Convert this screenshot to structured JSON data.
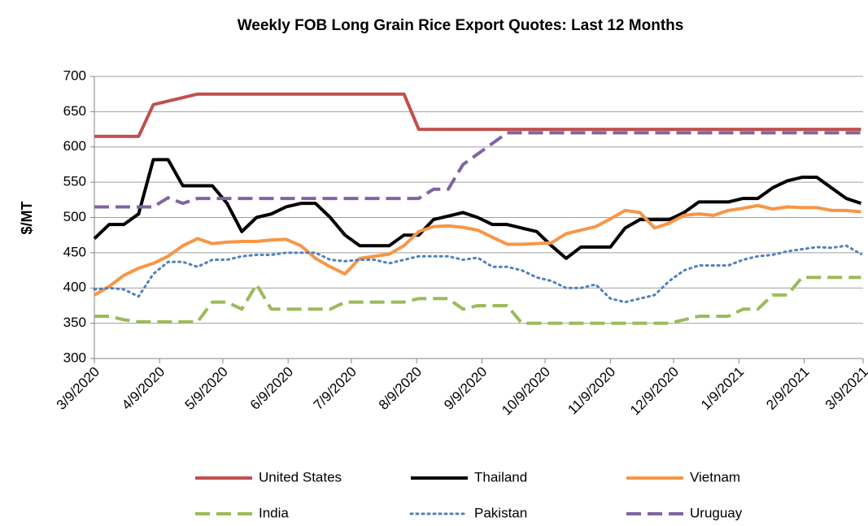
{
  "chart_data": {
    "type": "line",
    "title": "Weekly FOB Long Grain Rice Export Quotes:  Last 12 Months",
    "y_label": "$/MT",
    "x": [
      "3/9/2020",
      "3/16/2020",
      "3/23/2020",
      "3/30/2020",
      "4/6/2020",
      "4/13/2020",
      "4/20/2020",
      "4/27/2020",
      "5/4/2020",
      "5/11/2020",
      "5/18/2020",
      "5/25/2020",
      "6/1/2020",
      "6/8/2020",
      "6/15/2020",
      "6/22/2020",
      "6/29/2020",
      "7/6/2020",
      "7/13/2020",
      "7/20/2020",
      "7/27/2020",
      "8/3/2020",
      "8/10/2020",
      "8/17/2020",
      "8/24/2020",
      "8/31/2020",
      "9/7/2020",
      "9/14/2020",
      "9/21/2020",
      "9/28/2020",
      "10/5/2020",
      "10/12/2020",
      "10/19/2020",
      "10/26/2020",
      "11/2/2020",
      "11/9/2020",
      "11/16/2020",
      "11/23/2020",
      "11/30/2020",
      "12/7/2020",
      "12/14/2020",
      "12/21/2020",
      "12/28/2020",
      "1/4/2021",
      "1/11/2021",
      "1/18/2021",
      "1/25/2021",
      "2/1/2021",
      "2/8/2021",
      "2/15/2021",
      "2/22/2021",
      "3/1/2021",
      "3/8/2021"
    ],
    "xlim": [
      "3/9/2020",
      "3/9/2021"
    ],
    "xticks": [
      "3/9/2020",
      "4/9/2020",
      "5/9/2020",
      "6/9/2020",
      "7/9/2020",
      "8/9/2020",
      "9/9/2020",
      "10/9/2020",
      "11/9/2020",
      "12/9/2020",
      "1/9/2021",
      "2/9/2021",
      "3/9/2021"
    ],
    "ylim": [
      300,
      700
    ],
    "yticks": [
      300,
      350,
      400,
      450,
      500,
      550,
      600,
      650,
      700
    ],
    "grid": true,
    "legend": "bottom",
    "series": [
      {
        "name": "United States",
        "color": "#c0504d",
        "dash": "solid",
        "values": [
          615,
          615,
          615,
          615,
          660,
          665,
          670,
          675,
          675,
          675,
          675,
          675,
          675,
          675,
          675,
          675,
          675,
          675,
          675,
          675,
          675,
          675,
          625,
          625,
          625,
          625,
          625,
          625,
          625,
          625,
          625,
          625,
          625,
          625,
          625,
          625,
          625,
          625,
          625,
          625,
          625,
          625,
          625,
          625,
          625,
          625,
          625,
          625,
          625,
          625,
          625,
          625,
          625
        ]
      },
      {
        "name": "Thailand",
        "color": "#000000",
        "dash": "solid",
        "values": [
          470,
          490,
          490,
          505,
          582,
          582,
          545,
          545,
          545,
          520,
          480,
          500,
          505,
          515,
          520,
          520,
          500,
          475,
          460,
          460,
          460,
          475,
          475,
          497,
          502,
          507,
          500,
          490,
          490,
          485,
          480,
          460,
          442,
          458,
          458,
          458,
          485,
          497,
          497,
          497,
          507,
          522,
          522,
          522,
          527,
          527,
          542,
          552,
          557,
          557,
          542,
          527,
          520
        ]
      },
      {
        "name": "Vietnam",
        "color": "#f79646",
        "dash": "solid",
        "values": [
          390,
          402,
          418,
          428,
          435,
          445,
          460,
          470,
          463,
          465,
          466,
          466,
          468,
          469,
          460,
          442,
          430,
          420,
          442,
          445,
          448,
          460,
          480,
          487,
          488,
          486,
          482,
          472,
          462,
          462,
          463,
          464,
          477,
          482,
          487,
          498,
          510,
          507,
          485,
          492,
          503,
          505,
          503,
          510,
          513,
          517,
          512,
          515,
          514,
          514,
          510,
          510,
          508
        ]
      },
      {
        "name": "India",
        "color": "#9bbb59",
        "dash": "dashed",
        "values": [
          360,
          360,
          355,
          352,
          352,
          352,
          352,
          352,
          380,
          380,
          370,
          405,
          370,
          370,
          370,
          370,
          370,
          380,
          380,
          380,
          380,
          380,
          385,
          385,
          385,
          370,
          375,
          375,
          375,
          350,
          350,
          350,
          350,
          350,
          350,
          350,
          350,
          350,
          350,
          350,
          355,
          360,
          360,
          360,
          370,
          370,
          390,
          390,
          415,
          415,
          415,
          415,
          415
        ]
      },
      {
        "name": "Pakistan",
        "color": "#4f81bd",
        "dash": "dotted",
        "values": [
          398,
          400,
          398,
          388,
          420,
          437,
          437,
          430,
          440,
          440,
          445,
          447,
          447,
          450,
          450,
          450,
          440,
          438,
          440,
          440,
          435,
          440,
          445,
          445,
          445,
          440,
          443,
          430,
          430,
          425,
          415,
          410,
          400,
          400,
          405,
          385,
          380,
          385,
          390,
          410,
          425,
          432,
          432,
          432,
          440,
          445,
          447,
          452,
          455,
          458,
          457,
          460,
          448
        ]
      },
      {
        "name": "Uruguay",
        "color": "#8064a2",
        "dash": "dashed",
        "values": [
          515,
          515,
          515,
          515,
          515,
          528,
          520,
          527,
          527,
          527,
          527,
          527,
          527,
          527,
          527,
          527,
          527,
          527,
          527,
          527,
          527,
          527,
          527,
          540,
          540,
          575,
          590,
          605,
          620,
          620,
          620,
          620,
          620,
          620,
          620,
          620,
          620,
          620,
          620,
          620,
          620,
          620,
          620,
          620,
          620,
          620,
          620,
          620,
          620,
          620,
          620,
          620,
          620
        ]
      }
    ]
  }
}
